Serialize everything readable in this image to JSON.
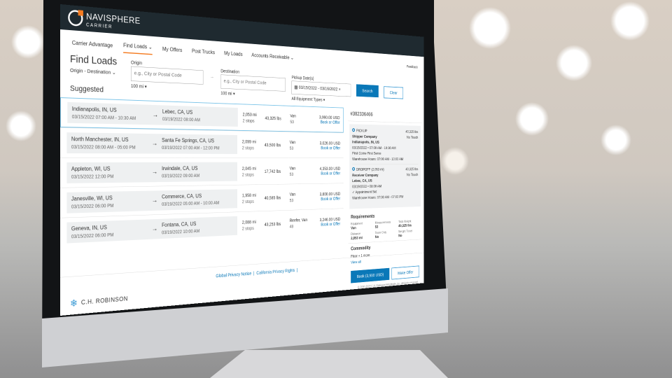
{
  "brand": {
    "name": "NAVISPHERE",
    "sub": "CARRIER"
  },
  "nav": {
    "items": [
      "Carrier Advantage",
      "Find Loads ⌄",
      "My Offers",
      "Post Trucks",
      "My Loads",
      "Accounts Receivable ⌄"
    ],
    "feedback": "Feedback"
  },
  "search": {
    "title": "Find Loads",
    "mode": "Origin - Destination ⌄",
    "suggested": "Suggested",
    "origin_label": "Origin",
    "origin_placeholder": "e.g., City or Postal Code",
    "origin_radius": "100 mi ▾",
    "dest_label": "Destination",
    "dest_placeholder": "e.g., City or Postal Code",
    "dest_radius": "100 mi ▾",
    "date_label": "Pickup Date(s)",
    "date_value": "03/15/2022 - 03/16/2022 ×",
    "equipment": "All Equipment Types ▾",
    "search": "Search",
    "clear": "Clear"
  },
  "loads": [
    {
      "origin": "Indianapolis, IN, US",
      "o_time": "03/15/2022 07:00 AM - 10:30 AM",
      "dest": "Lebec, CA, US",
      "d_time": "03/19/2022 08:00 AM",
      "miles": "2,053 mi",
      "stops": "2 stops",
      "weight": "40,325 lbs",
      "equip": "Van",
      "len": "53",
      "price": "3,990.00 USD",
      "action": "Book or Offer"
    },
    {
      "origin": "North Manchester, IN, US",
      "o_time": "03/15/2022 08:00 AM - 05:00 PM",
      "dest": "Santa Fe Springs, CA, US",
      "d_time": "03/19/2022 07:00 AM - 12:00 PM",
      "miles": "2,099 mi",
      "stops": "2 stops",
      "weight": "43,500 lbs",
      "equip": "Van",
      "len": "53",
      "price": "3,026.00 USD",
      "action": "Book or Offer"
    },
    {
      "origin": "Appleton, WI, US",
      "o_time": "03/15/2022 12:00 PM",
      "dest": "Irwindale, CA, US",
      "d_time": "03/19/2022 09:00 AM",
      "miles": "2,045 mi",
      "stops": "2 stops",
      "weight": "17,742 lbs",
      "equip": "Van",
      "len": "53",
      "price": "4,353.00 USD",
      "action": "Book or Offer"
    },
    {
      "origin": "Janesville, WI, US",
      "o_time": "03/15/2022 06:00 PM",
      "dest": "Commerce, CA, US",
      "d_time": "03/19/2022 05:00 AM - 10:00 AM",
      "miles": "1,958 mi",
      "stops": "2 stops",
      "weight": "40,585 lbs",
      "equip": "Van",
      "len": "53",
      "price": "3,800.00 USD",
      "action": "Book or Offer"
    },
    {
      "origin": "Geneva, IN, US",
      "o_time": "03/15/2022 06:00 PM",
      "dest": "Fontana, CA, US",
      "d_time": "03/19/2022 10:00 AM",
      "miles": "2,088 mi",
      "stops": "2 stops",
      "weight": "43,253 lbs",
      "equip": "Reefer, Van",
      "len": "48",
      "price": "3,246.00 USD",
      "action": "Book or Offer"
    }
  ],
  "detail": {
    "id": "#382336466",
    "pickup": {
      "label": "PICKUP",
      "company": "Shipper Company",
      "city": "Indianapolis, IN, US",
      "time": "03/15/2022 • 07:00 AM - 10:30 AM",
      "note": "First Come First Serve",
      "hours": "Warehouse Hours: 07:00 AM - 10:00 AM",
      "weight": "40,325 lbs",
      "touch": "No Touch"
    },
    "dropoff": {
      "label": "DROPOFF (2,053 mi)",
      "company": "Receiver Company",
      "city": "Lebec, CA, US",
      "time": "03/19/2022 • 08:00 AM",
      "note": "✓ Appointment Set",
      "hours": "Warehouse Hours: 07:00 AM - 07:00 PM",
      "weight": "40,325 lbs",
      "touch": "No Touch"
    },
    "req_title": "Requirements",
    "req": [
      {
        "k": "Equipment",
        "v": "Van"
      },
      {
        "k": "Measurements",
        "v": "53"
      },
      {
        "k": "Total Weight",
        "v": "40,325 lbs"
      },
      {
        "k": "Distance",
        "v": "2,053 mi"
      },
      {
        "k": "Team Only",
        "v": "No"
      },
      {
        "k": "Weight Ticket",
        "v": "No"
      }
    ],
    "commodity_title": "Commodity",
    "commodity": "Floor + 1 more",
    "view_all": "View all",
    "book": "Book (3,990 USD)",
    "offer": "Make Offer",
    "copyright": "© 2000-2022 C.H. Robinson Worldwide, Inc. All rights reserved."
  },
  "footer": {
    "privacy": "Global Privacy Notice",
    "california": "California Privacy Rights",
    "company": "C.H. ROBINSON"
  }
}
